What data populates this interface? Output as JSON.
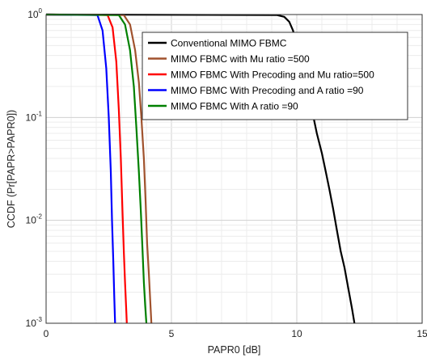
{
  "chart_data": {
    "type": "line",
    "xlabel": "PAPR0 [dB]",
    "ylabel": "CCDF (Pr[PAPR>PAPR0])",
    "xlim": [
      0,
      15
    ],
    "ylim": [
      0.001,
      1
    ],
    "y_scale": "log",
    "grid": true,
    "legend_position": "top-right",
    "x_ticks": [
      "0",
      "5",
      "10",
      "15"
    ],
    "y_ticks": [
      {
        "value": 1,
        "base": "10",
        "exp": "0"
      },
      {
        "value": 0.1,
        "base": "10",
        "exp": "-1"
      },
      {
        "value": 0.01,
        "base": "10",
        "exp": "-2"
      },
      {
        "value": 0.001,
        "base": "10",
        "exp": "-3"
      }
    ],
    "series": [
      {
        "name": "Conventional MIMO FBMC",
        "color": "#000000",
        "x": [
          0,
          9.2,
          9.5,
          9.7,
          9.85,
          10.0,
          10.2,
          10.35,
          10.6,
          10.8,
          11.0,
          11.15,
          11.3,
          11.45,
          11.6,
          11.75,
          11.9,
          12.05,
          12.2,
          12.3
        ],
        "y": [
          1,
          0.99,
          0.95,
          0.85,
          0.7,
          0.5,
          0.3,
          0.2,
          0.12,
          0.07,
          0.045,
          0.03,
          0.02,
          0.013,
          0.008,
          0.005,
          0.0035,
          0.0022,
          0.0014,
          0.001
        ]
      },
      {
        "name": "MIMO FBMC with Mu ratio =500",
        "color": "#a0522d",
        "x": [
          0,
          3.1,
          3.35,
          3.55,
          3.7,
          3.8,
          3.9,
          3.97,
          4.03,
          4.1,
          4.15,
          4.2
        ],
        "y": [
          1,
          0.99,
          0.8,
          0.45,
          0.22,
          0.1,
          0.04,
          0.015,
          0.006,
          0.003,
          0.0017,
          0.001
        ]
      },
      {
        "name": "MIMO FBMC With Precoding and Mu ratio=500",
        "color": "#ff0000",
        "x": [
          0,
          2.45,
          2.65,
          2.8,
          2.9,
          2.98,
          3.05,
          3.1,
          3.15,
          3.2,
          3.22
        ],
        "y": [
          1,
          0.99,
          0.75,
          0.35,
          0.12,
          0.04,
          0.012,
          0.005,
          0.0025,
          0.0013,
          0.001
        ]
      },
      {
        "name": "MIMO FBMC With Precoding and A ratio =90",
        "color": "#0000ff",
        "x": [
          0,
          2.05,
          2.25,
          2.4,
          2.5,
          2.58,
          2.63,
          2.68,
          2.72,
          2.75
        ],
        "y": [
          1,
          0.99,
          0.7,
          0.3,
          0.1,
          0.03,
          0.01,
          0.004,
          0.0018,
          0.001
        ]
      },
      {
        "name": "MIMO FBMC With A ratio =90",
        "color": "#008000",
        "x": [
          0,
          2.9,
          3.15,
          3.35,
          3.5,
          3.6,
          3.7,
          3.78,
          3.85,
          3.9,
          3.95,
          4.0
        ],
        "y": [
          1,
          0.99,
          0.8,
          0.45,
          0.2,
          0.08,
          0.03,
          0.012,
          0.005,
          0.0025,
          0.0015,
          0.001
        ]
      }
    ]
  }
}
